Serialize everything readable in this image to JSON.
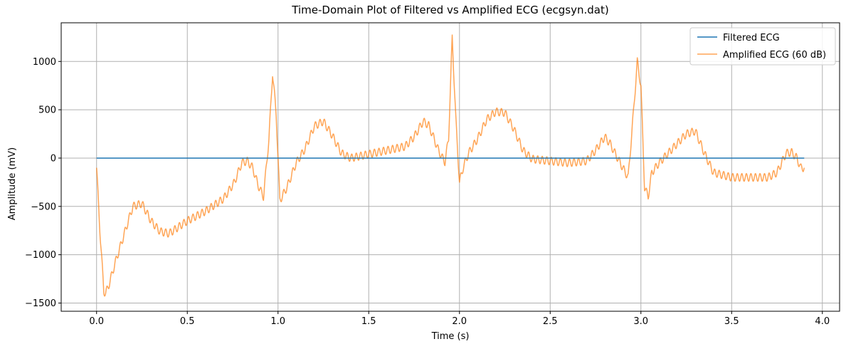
{
  "chart_data": {
    "type": "line",
    "title": "Time-Domain Plot of Filtered vs Amplified ECG (ecgsyn.dat)",
    "xlabel": "Time (s)",
    "ylabel": "Amplitude (mV)",
    "xlim": [
      -0.195,
      4.095
    ],
    "ylim": [
      -1585,
      1400
    ],
    "xticks": [
      0.0,
      0.5,
      1.0,
      1.5,
      2.0,
      2.5,
      3.0,
      3.5,
      4.0
    ],
    "xtick_labels": [
      "0.0",
      "0.5",
      "1.0",
      "1.5",
      "2.0",
      "2.5",
      "3.0",
      "3.5",
      "4.0"
    ],
    "yticks": [
      -1500,
      -1000,
      -500,
      0,
      500,
      1000
    ],
    "ytick_labels": [
      "−1500",
      "−1000",
      "−500",
      "0",
      "500",
      "1000"
    ],
    "grid": true,
    "legend_position": "top-right",
    "series": [
      {
        "name": "Filtered ECG",
        "color": "#1f77b4",
        "x": [
          0.0,
          3.9
        ],
        "y": [
          0,
          0
        ]
      },
      {
        "name": "Amplified ECG (60 dB)",
        "color": "#ff7f0e",
        "ripple_amplitude": 40,
        "ripple_period": 0.025,
        "x": [
          0.0,
          0.02,
          0.04,
          0.05,
          0.07,
          0.1,
          0.15,
          0.2,
          0.25,
          0.3,
          0.35,
          0.4,
          0.5,
          0.6,
          0.7,
          0.76,
          0.8,
          0.83,
          0.86,
          0.89,
          0.92,
          0.95,
          0.97,
          0.99,
          1.01,
          1.05,
          1.1,
          1.15,
          1.2,
          1.25,
          1.3,
          1.35,
          1.4,
          1.5,
          1.6,
          1.7,
          1.75,
          1.8,
          1.83,
          1.86,
          1.88,
          1.9,
          1.92,
          1.94,
          1.96,
          1.98,
          2.0,
          2.02,
          2.05,
          2.1,
          2.15,
          2.2,
          2.25,
          2.3,
          2.35,
          2.4,
          2.5,
          2.6,
          2.7,
          2.75,
          2.8,
          2.83,
          2.86,
          2.9,
          2.93,
          2.96,
          2.98,
          3.0,
          3.02,
          3.04,
          3.06,
          3.1,
          3.15,
          3.2,
          3.25,
          3.3,
          3.35,
          3.4,
          3.5,
          3.6,
          3.7,
          3.75,
          3.8,
          3.83,
          3.86,
          3.88,
          3.9
        ],
        "y": [
          -100,
          -800,
          -1380,
          -1400,
          -1300,
          -1100,
          -800,
          -500,
          -470,
          -650,
          -760,
          -780,
          -650,
          -550,
          -420,
          -250,
          -50,
          -30,
          -100,
          -280,
          -400,
          200,
          880,
          450,
          -440,
          -300,
          -50,
          100,
          330,
          380,
          230,
          50,
          0,
          40,
          80,
          120,
          220,
          380,
          340,
          200,
          100,
          20,
          -40,
          200,
          1250,
          400,
          -250,
          -100,
          50,
          200,
          400,
          480,
          470,
          300,
          80,
          -10,
          -30,
          -50,
          -30,
          80,
          220,
          150,
          40,
          -100,
          -200,
          500,
          1000,
          750,
          -300,
          -400,
          -150,
          -50,
          50,
          150,
          250,
          280,
          50,
          -150,
          -200,
          -200,
          -200,
          -150,
          50,
          60,
          0,
          -100,
          -100
        ]
      }
    ]
  }
}
